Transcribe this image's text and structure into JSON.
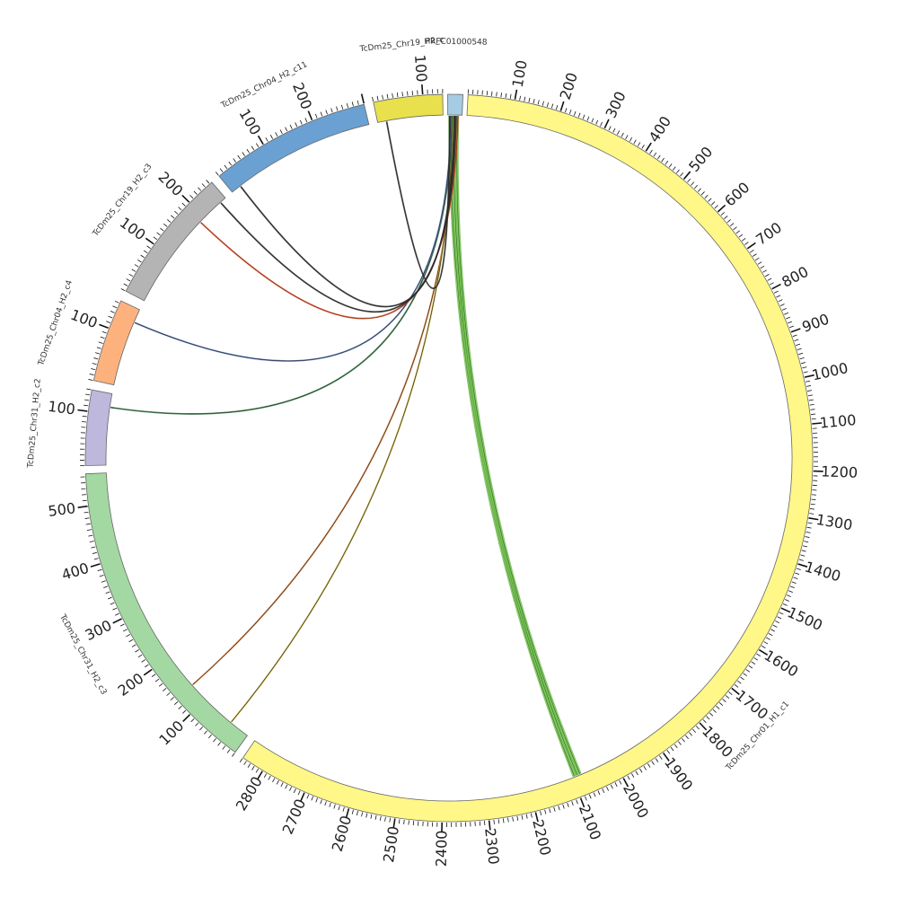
{
  "diagram": {
    "segments": [
      {
        "id": "chr01",
        "label": "TcDm25_Chr01_H1_c1",
        "length": 2850,
        "color": "#fff787",
        "start_deg": 3,
        "end_deg": 214.5,
        "tick_every": 100,
        "labels": [
          "100",
          "200",
          "300",
          "400",
          "500",
          "600",
          "700",
          "800",
          "900",
          "1000",
          "1100",
          "1200",
          "1300",
          "1400",
          "1500",
          "1600",
          "1700",
          "1800",
          "1900",
          "2000",
          "2100",
          "2200",
          "2300",
          "2400",
          "2500",
          "2600",
          "2700",
          "2800"
        ]
      },
      {
        "id": "chr31c3",
        "label": "TcDm25_Chr31_H2_c3",
        "length": 555,
        "color": "#a3d8a3",
        "start_deg": 216,
        "end_deg": 267.5,
        "tick_every": 100,
        "labels": [
          "100",
          "200",
          "300",
          "400",
          "500"
        ]
      },
      {
        "id": "chr31c2",
        "label": "TcDm25_Chr31_H2_c2",
        "length": 140,
        "color": "#bdb8dc",
        "start_deg": 268.8,
        "end_deg": 280.8,
        "tick_every": 100,
        "labels": [
          "100"
        ]
      },
      {
        "id": "chr04c4",
        "label": "TcDm25_Chr04_H2_c4",
        "length": 155,
        "color": "#fdb27e",
        "start_deg": 282.3,
        "end_deg": 295.6,
        "tick_every": 100,
        "labels": [
          "100"
        ]
      },
      {
        "id": "chr19c3",
        "label": "TcDm25_Chr19_H2_c3",
        "length": 255,
        "color": "#b4b4b4",
        "start_deg": 297.3,
        "end_deg": 319.3,
        "tick_every": 100,
        "labels": [
          "100",
          "200"
        ]
      },
      {
        "id": "chr04c11",
        "label": "TcDm25_Chr04_H2_c11",
        "length": 300,
        "color": "#6aa1d2",
        "start_deg": 320.8,
        "end_deg": 346.5,
        "tick_every": 100,
        "labels": [
          "100",
          "200"
        ]
      },
      {
        "id": "chr19c",
        "label": "TcDm25_Chr19_H2_c",
        "length": 140,
        "color": "#e8e04d",
        "start_deg": 348,
        "end_deg": 359,
        "tick_every": 100,
        "labels": [
          "100"
        ]
      },
      {
        "id": "prfc",
        "label": "PRFC01000548",
        "length": 25,
        "color": "#a6cce4",
        "start_deg": 359.8,
        "end_deg": 362.2,
        "tick_every": 0,
        "labels": []
      }
    ],
    "links": [
      {
        "from": "prfc",
        "to": "chr01",
        "from_deg": 360.2,
        "to_deg": 158.5,
        "color": "#79c257",
        "stroke": "#2d6a1f",
        "ribbon": true
      },
      {
        "from": "prfc",
        "to": "chr01",
        "from_deg": 360.8,
        "to_deg": 158.0,
        "color": "#79c257",
        "stroke": "#2d6a1f",
        "ribbon": true
      },
      {
        "from": "prfc",
        "to": "chr01",
        "from_deg": 361.4,
        "to_deg": 157.5,
        "color": "#79c257",
        "stroke": "#2d6a1f",
        "ribbon": true
      },
      {
        "from": "prfc",
        "to": "chr31c3",
        "from_deg": 361.0,
        "to_deg": 228.5,
        "color": "#e07a2e",
        "stroke": "#222222",
        "ribbon": false
      },
      {
        "from": "prfc",
        "to": "chr31c3",
        "from_deg": 360.6,
        "to_deg": 219.5,
        "color": "#c9b030",
        "stroke": "#222222",
        "ribbon": false
      },
      {
        "from": "prfc",
        "to": "chr31c2",
        "from_deg": 360.5,
        "to_deg": 278.5,
        "color": "#3a7a4a",
        "stroke": "#1d3d24",
        "ribbon": false
      },
      {
        "from": "prfc",
        "to": "chr04c4",
        "from_deg": 360.3,
        "to_deg": 293.3,
        "color": "#5a7abf",
        "stroke": "#222222",
        "ribbon": false
      },
      {
        "from": "prfc",
        "to": "chr19c3",
        "from_deg": 361.5,
        "to_deg": 313.5,
        "color": "#e0552e",
        "stroke": "#7a2a14",
        "ribbon": false
      },
      {
        "from": "prfc",
        "to": "chr19c3",
        "from_deg": 361.2,
        "to_deg": 318.2,
        "color": "#333333",
        "stroke": "#222222",
        "ribbon": false
      },
      {
        "from": "prfc",
        "to": "chr04c11",
        "from_deg": 360.9,
        "to_deg": 322.5,
        "color": "#333333",
        "stroke": "#222222",
        "ribbon": false
      },
      {
        "from": "prfc",
        "to": "chr19c",
        "from_deg": 360.1,
        "to_deg": 349.5,
        "color": "#333333",
        "stroke": "#222222",
        "ribbon": false
      }
    ]
  }
}
